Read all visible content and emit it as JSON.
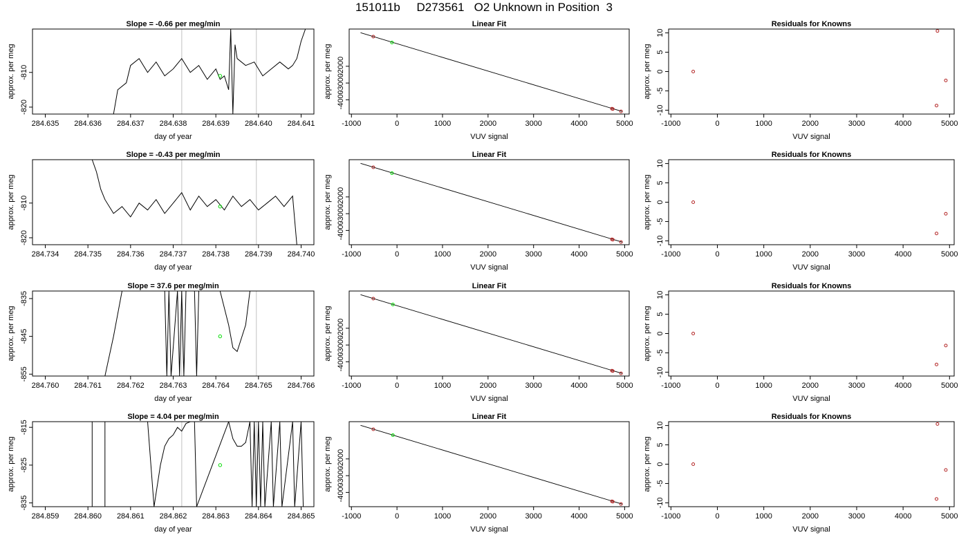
{
  "page": {
    "title": "151011b     D273561   O2 Unknown in Position  3"
  },
  "colors": {
    "axis": "#000000",
    "trace": "#000000",
    "vline": "#cccccc",
    "known_point": "#b22222",
    "unknown_point": "#00dd00"
  },
  "chart_data": [
    {
      "type": "line",
      "title": "Slope =  -0.66  per meg/min",
      "xlabel": "day of year",
      "ylabel": "approx. per meg",
      "xlim": [
        284.6347,
        284.6413
      ],
      "ylim": [
        -822,
        -797.5
      ],
      "xticks": [
        284.635,
        284.636,
        284.637,
        284.638,
        284.639,
        284.64,
        284.641
      ],
      "xtick_labels": [
        "284.635",
        "284.636",
        "284.637",
        "284.638",
        "284.639",
        "284.640",
        "284.641"
      ],
      "yticks": [
        -810,
        -820
      ],
      "ytick_labels": [
        "-810",
        "-820"
      ],
      "vlines": [
        284.6382,
        284.63995
      ],
      "unknown_point": {
        "x": 284.6391,
        "y": -811
      },
      "series": [
        {
          "x": [
            284.6366,
            284.6367,
            284.6369,
            284.637,
            284.6372,
            284.6374,
            284.6376,
            284.6378,
            284.638,
            284.6382,
            284.6384,
            284.6386,
            284.6388,
            284.639,
            284.6391,
            284.6392,
            284.6393,
            284.63935,
            284.6394,
            284.63945,
            284.6395,
            284.6397,
            284.6399,
            284.6401,
            284.6403,
            284.6405,
            284.6407,
            284.6408,
            284.6409,
            284.641,
            284.6411
          ],
          "y": [
            -822,
            -815,
            -813,
            -808,
            -806,
            -810,
            -807,
            -811,
            -809,
            -806,
            -810,
            -808,
            -812,
            -809,
            -812,
            -811,
            -815,
            -797.5,
            -822,
            -802,
            -806,
            -808,
            -807,
            -811,
            -809,
            -807,
            -809,
            -808,
            -806,
            -801,
            -797.5
          ]
        }
      ]
    },
    {
      "type": "line",
      "title": "Linear Fit",
      "xlabel": "VUV signal",
      "ylabel": "approx. per meg",
      "xlim": [
        -1050,
        5100
      ],
      "ylim": [
        -4850,
        220
      ],
      "xticks": [
        -1000,
        0,
        1000,
        2000,
        3000,
        4000,
        5000
      ],
      "xtick_labels": [
        "-1000",
        "0",
        "1000",
        "2000",
        "3000",
        "4000",
        "5000"
      ],
      "yticks": [
        -2000,
        -3000,
        -4000
      ],
      "ytick_labels": [
        "-2000",
        "-3000",
        "-4000"
      ],
      "fit_line": {
        "x": [
          -800,
          4950
        ],
        "y": [
          0,
          -4700
        ]
      },
      "knowns": {
        "x": [
          -520,
          4720,
          4740,
          4920
        ],
        "y": [
          -235,
          -4530,
          -4550,
          -4690
        ]
      },
      "unknown": {
        "x": -110,
        "y": -585
      }
    },
    {
      "type": "scatter",
      "title": "Residuals for Knowns",
      "xlabel": "VUV signal",
      "ylabel": "approx. per meg",
      "xlim": [
        -1050,
        5100
      ],
      "ylim": [
        -11,
        11
      ],
      "xticks": [
        -1000,
        0,
        1000,
        2000,
        3000,
        4000,
        5000
      ],
      "xtick_labels": [
        "-1000",
        "0",
        "1000",
        "2000",
        "3000",
        "4000",
        "5000"
      ],
      "yticks": [
        10,
        5,
        0,
        -5,
        -10
      ],
      "ytick_labels": [
        "10",
        "5",
        "0",
        "-5",
        "-10"
      ],
      "points": {
        "x": [
          -520,
          4720,
          4740,
          4920
        ],
        "y": [
          0,
          -8.8,
          10.5,
          -2.3
        ]
      }
    },
    {
      "type": "line",
      "title": "Slope =  -0.43  per meg/min",
      "xlabel": "day of year",
      "ylabel": "approx. per meg",
      "xlim": [
        284.7337,
        284.7403
      ],
      "ylim": [
        -822,
        -797.5
      ],
      "xticks": [
        284.734,
        284.735,
        284.736,
        284.737,
        284.738,
        284.739,
        284.74
      ],
      "xtick_labels": [
        "284.734",
        "284.735",
        "284.736",
        "284.737",
        "284.738",
        "284.739",
        "284.740"
      ],
      "yticks": [
        -810,
        -820
      ],
      "ytick_labels": [
        "-810",
        "-820"
      ],
      "vlines": [
        284.7372,
        284.73895
      ],
      "unknown_point": {
        "x": 284.7381,
        "y": -811
      },
      "series": [
        {
          "x": [
            284.7351,
            284.7352,
            284.7353,
            284.7354,
            284.7356,
            284.7358,
            284.736,
            284.7362,
            284.7364,
            284.7366,
            284.7368,
            284.737,
            284.7372,
            284.7374,
            284.7376,
            284.7378,
            284.738,
            284.7382,
            284.7384,
            284.7386,
            284.7388,
            284.739,
            284.7392,
            284.7394,
            284.7396,
            284.7398,
            284.7399
          ],
          "y": [
            -797.5,
            -801,
            -806,
            -809,
            -813,
            -811,
            -814,
            -810,
            -812,
            -809,
            -813,
            -810,
            -807,
            -812,
            -808,
            -811,
            -809,
            -812,
            -808,
            -811,
            -809,
            -812,
            -810,
            -808,
            -811,
            -808,
            -822
          ]
        }
      ]
    },
    {
      "type": "line",
      "title": "Linear Fit",
      "xlabel": "VUV signal",
      "ylabel": "approx. per meg",
      "xlim": [
        -1050,
        5100
      ],
      "ylim": [
        -4850,
        220
      ],
      "xticks": [
        -1000,
        0,
        1000,
        2000,
        3000,
        4000,
        5000
      ],
      "xtick_labels": [
        "-1000",
        "0",
        "1000",
        "2000",
        "3000",
        "4000",
        "5000"
      ],
      "yticks": [
        -2000,
        -3000,
        -4000
      ],
      "ytick_labels": [
        "-2000",
        "-3000",
        "-4000"
      ],
      "fit_line": {
        "x": [
          -800,
          4950
        ],
        "y": [
          0,
          -4700
        ]
      },
      "knowns": {
        "x": [
          -520,
          4720,
          4740,
          4920
        ],
        "y": [
          -235,
          -4530,
          -4550,
          -4690
        ]
      },
      "unknown": {
        "x": -110,
        "y": -585
      }
    },
    {
      "type": "scatter",
      "title": "Residuals for Knowns",
      "xlabel": "VUV signal",
      "ylabel": "approx. per meg",
      "xlim": [
        -1050,
        5100
      ],
      "ylim": [
        -11,
        11
      ],
      "xticks": [
        -1000,
        0,
        1000,
        2000,
        3000,
        4000,
        5000
      ],
      "xtick_labels": [
        "-1000",
        "0",
        "1000",
        "2000",
        "3000",
        "4000",
        "5000"
      ],
      "yticks": [
        10,
        5,
        0,
        -5,
        -10
      ],
      "ytick_labels": [
        "10",
        "5",
        "0",
        "-5",
        "-10"
      ],
      "points": {
        "x": [
          -520,
          4720,
          4920
        ],
        "y": [
          0,
          -8.1,
          -3.0
        ]
      }
    },
    {
      "type": "line",
      "title": "Slope =  37.6  per meg/min",
      "xlabel": "day of year",
      "ylabel": "approx. per meg",
      "xlim": [
        284.7597,
        284.7663
      ],
      "ylim": [
        -855.5,
        -833
      ],
      "xticks": [
        284.76,
        284.761,
        284.762,
        284.763,
        284.764,
        284.765,
        284.766
      ],
      "xtick_labels": [
        "284.760",
        "284.761",
        "284.762",
        "284.763",
        "284.764",
        "284.765",
        "284.766"
      ],
      "yticks": [
        -835,
        -845,
        -855
      ],
      "ytick_labels": [
        "-835",
        "-845",
        "-855"
      ],
      "vlines": [
        284.7632,
        284.76495
      ],
      "unknown_point": {
        "x": 284.7641,
        "y": -845
      },
      "series": [
        {
          "x": [
            284.7614,
            284.7616,
            284.7618,
            284.7628,
            284.76285,
            284.7629,
            284.76295,
            284.7631,
            284.76315,
            284.7632,
            284.76325,
            284.7633,
            284.7635,
            284.76355,
            284.7636,
            284.7641,
            284.7643,
            284.7644,
            284.7645,
            284.7647,
            284.7648
          ],
          "y": [
            -855.5,
            -845,
            -833,
            -833,
            -855.5,
            -833,
            -855.5,
            -833,
            -855.5,
            -833,
            -855.5,
            -833,
            -833,
            -855.5,
            -833,
            -833,
            -842,
            -848,
            -849,
            -842,
            -833
          ]
        }
      ]
    },
    {
      "type": "line",
      "title": "Linear Fit",
      "xlabel": "VUV signal",
      "ylabel": "approx. per meg",
      "xlim": [
        -1050,
        5100
      ],
      "ylim": [
        -4850,
        220
      ],
      "xticks": [
        -1000,
        0,
        1000,
        2000,
        3000,
        4000,
        5000
      ],
      "xtick_labels": [
        "-1000",
        "0",
        "1000",
        "2000",
        "3000",
        "4000",
        "5000"
      ],
      "yticks": [
        -2000,
        -3000,
        -4000
      ],
      "ytick_labels": [
        "-2000",
        "-3000",
        "-4000"
      ],
      "fit_line": {
        "x": [
          -800,
          4950
        ],
        "y": [
          0,
          -4700
        ]
      },
      "knowns": {
        "x": [
          -520,
          4720,
          4740,
          4920
        ],
        "y": [
          -235,
          -4530,
          -4550,
          -4690
        ]
      },
      "unknown": {
        "x": -90,
        "y": -585
      }
    },
    {
      "type": "scatter",
      "title": "Residuals for Knowns",
      "xlabel": "VUV signal",
      "ylabel": "approx. per meg",
      "xlim": [
        -1050,
        5100
      ],
      "ylim": [
        -11,
        11
      ],
      "xticks": [
        -1000,
        0,
        1000,
        2000,
        3000,
        4000,
        5000
      ],
      "xtick_labels": [
        "-1000",
        "0",
        "1000",
        "2000",
        "3000",
        "4000",
        "5000"
      ],
      "yticks": [
        10,
        5,
        0,
        -5,
        -10
      ],
      "ytick_labels": [
        "10",
        "5",
        "0",
        "-5",
        "-10"
      ],
      "points": {
        "x": [
          -520,
          4720,
          4920
        ],
        "y": [
          0,
          -8.0,
          -3.1
        ]
      }
    },
    {
      "type": "line",
      "title": "Slope =  4.04  per meg/min",
      "xlabel": "day of year",
      "ylabel": "approx. per meg",
      "xlim": [
        284.8587,
        284.8653
      ],
      "ylim": [
        -836,
        -813.5
      ],
      "xticks": [
        284.859,
        284.86,
        284.861,
        284.862,
        284.863,
        284.864,
        284.865
      ],
      "xtick_labels": [
        "284.859",
        "284.860",
        "284.861",
        "284.862",
        "284.863",
        "284.864",
        "284.865"
      ],
      "yticks": [
        -815,
        -825,
        -835
      ],
      "ytick_labels": [
        "-815",
        "-825",
        "-835"
      ],
      "vlines": [
        284.8622,
        284.86395
      ],
      "unknown_point": {
        "x": 284.8631,
        "y": -825
      },
      "series": [
        {
          "x": [
            284.8601,
            284.8601,
            284.8604,
            284.8604,
            284.8614,
            284.86155,
            284.8617,
            284.8618,
            284.8619,
            284.862,
            284.8621,
            284.8622,
            284.8623,
            284.8624,
            284.8625,
            284.86255,
            284.8633,
            284.8634,
            284.8635,
            284.8636,
            284.8637,
            284.8638,
            284.86385,
            284.8639,
            284.86395,
            284.864,
            284.86405,
            284.8641,
            284.86415,
            284.8643,
            284.86435,
            284.8645,
            284.86455,
            284.8648,
            284.86485,
            284.865,
            284.86505
          ],
          "y": [
            -813.5,
            -836,
            -836,
            -813.5,
            -813.5,
            -836,
            -825,
            -820,
            -818,
            -817,
            -815,
            -816,
            -814,
            -813.5,
            -813.5,
            -836,
            -813.5,
            -818,
            -820,
            -820,
            -819,
            -813.5,
            -836,
            -813.5,
            -836,
            -813.5,
            -836,
            -813.5,
            -836,
            -813.5,
            -836,
            -813.5,
            -836,
            -813.5,
            -836,
            -813.5,
            -836
          ]
        }
      ]
    },
    {
      "type": "line",
      "title": "Linear Fit",
      "xlabel": "VUV signal",
      "ylabel": "approx. per meg",
      "xlim": [
        -1050,
        5100
      ],
      "ylim": [
        -4850,
        220
      ],
      "xticks": [
        -1000,
        0,
        1000,
        2000,
        3000,
        4000,
        5000
      ],
      "xtick_labels": [
        "-1000",
        "0",
        "1000",
        "2000",
        "3000",
        "4000",
        "5000"
      ],
      "yticks": [
        -2000,
        -3000,
        -4000
      ],
      "ytick_labels": [
        "-2000",
        "-3000",
        "-4000"
      ],
      "fit_line": {
        "x": [
          -800,
          4950
        ],
        "y": [
          0,
          -4700
        ]
      },
      "knowns": {
        "x": [
          -520,
          4720,
          4740,
          4920
        ],
        "y": [
          -235,
          -4530,
          -4550,
          -4690
        ]
      },
      "unknown": {
        "x": -90,
        "y": -585
      }
    },
    {
      "type": "scatter",
      "title": "Residuals for Knowns",
      "xlabel": "VUV signal",
      "ylabel": "approx. per meg",
      "xlim": [
        -1050,
        5100
      ],
      "ylim": [
        -11,
        11
      ],
      "xticks": [
        -1000,
        0,
        1000,
        2000,
        3000,
        4000,
        5000
      ],
      "xtick_labels": [
        "-1000",
        "0",
        "1000",
        "2000",
        "3000",
        "4000",
        "5000"
      ],
      "yticks": [
        10,
        5,
        0,
        -5,
        -10
      ],
      "ytick_labels": [
        "10",
        "5",
        "0",
        "-5",
        "-10"
      ],
      "points": {
        "x": [
          -520,
          4720,
          4740,
          4920
        ],
        "y": [
          0,
          -9.0,
          10.4,
          -1.5
        ]
      }
    }
  ]
}
